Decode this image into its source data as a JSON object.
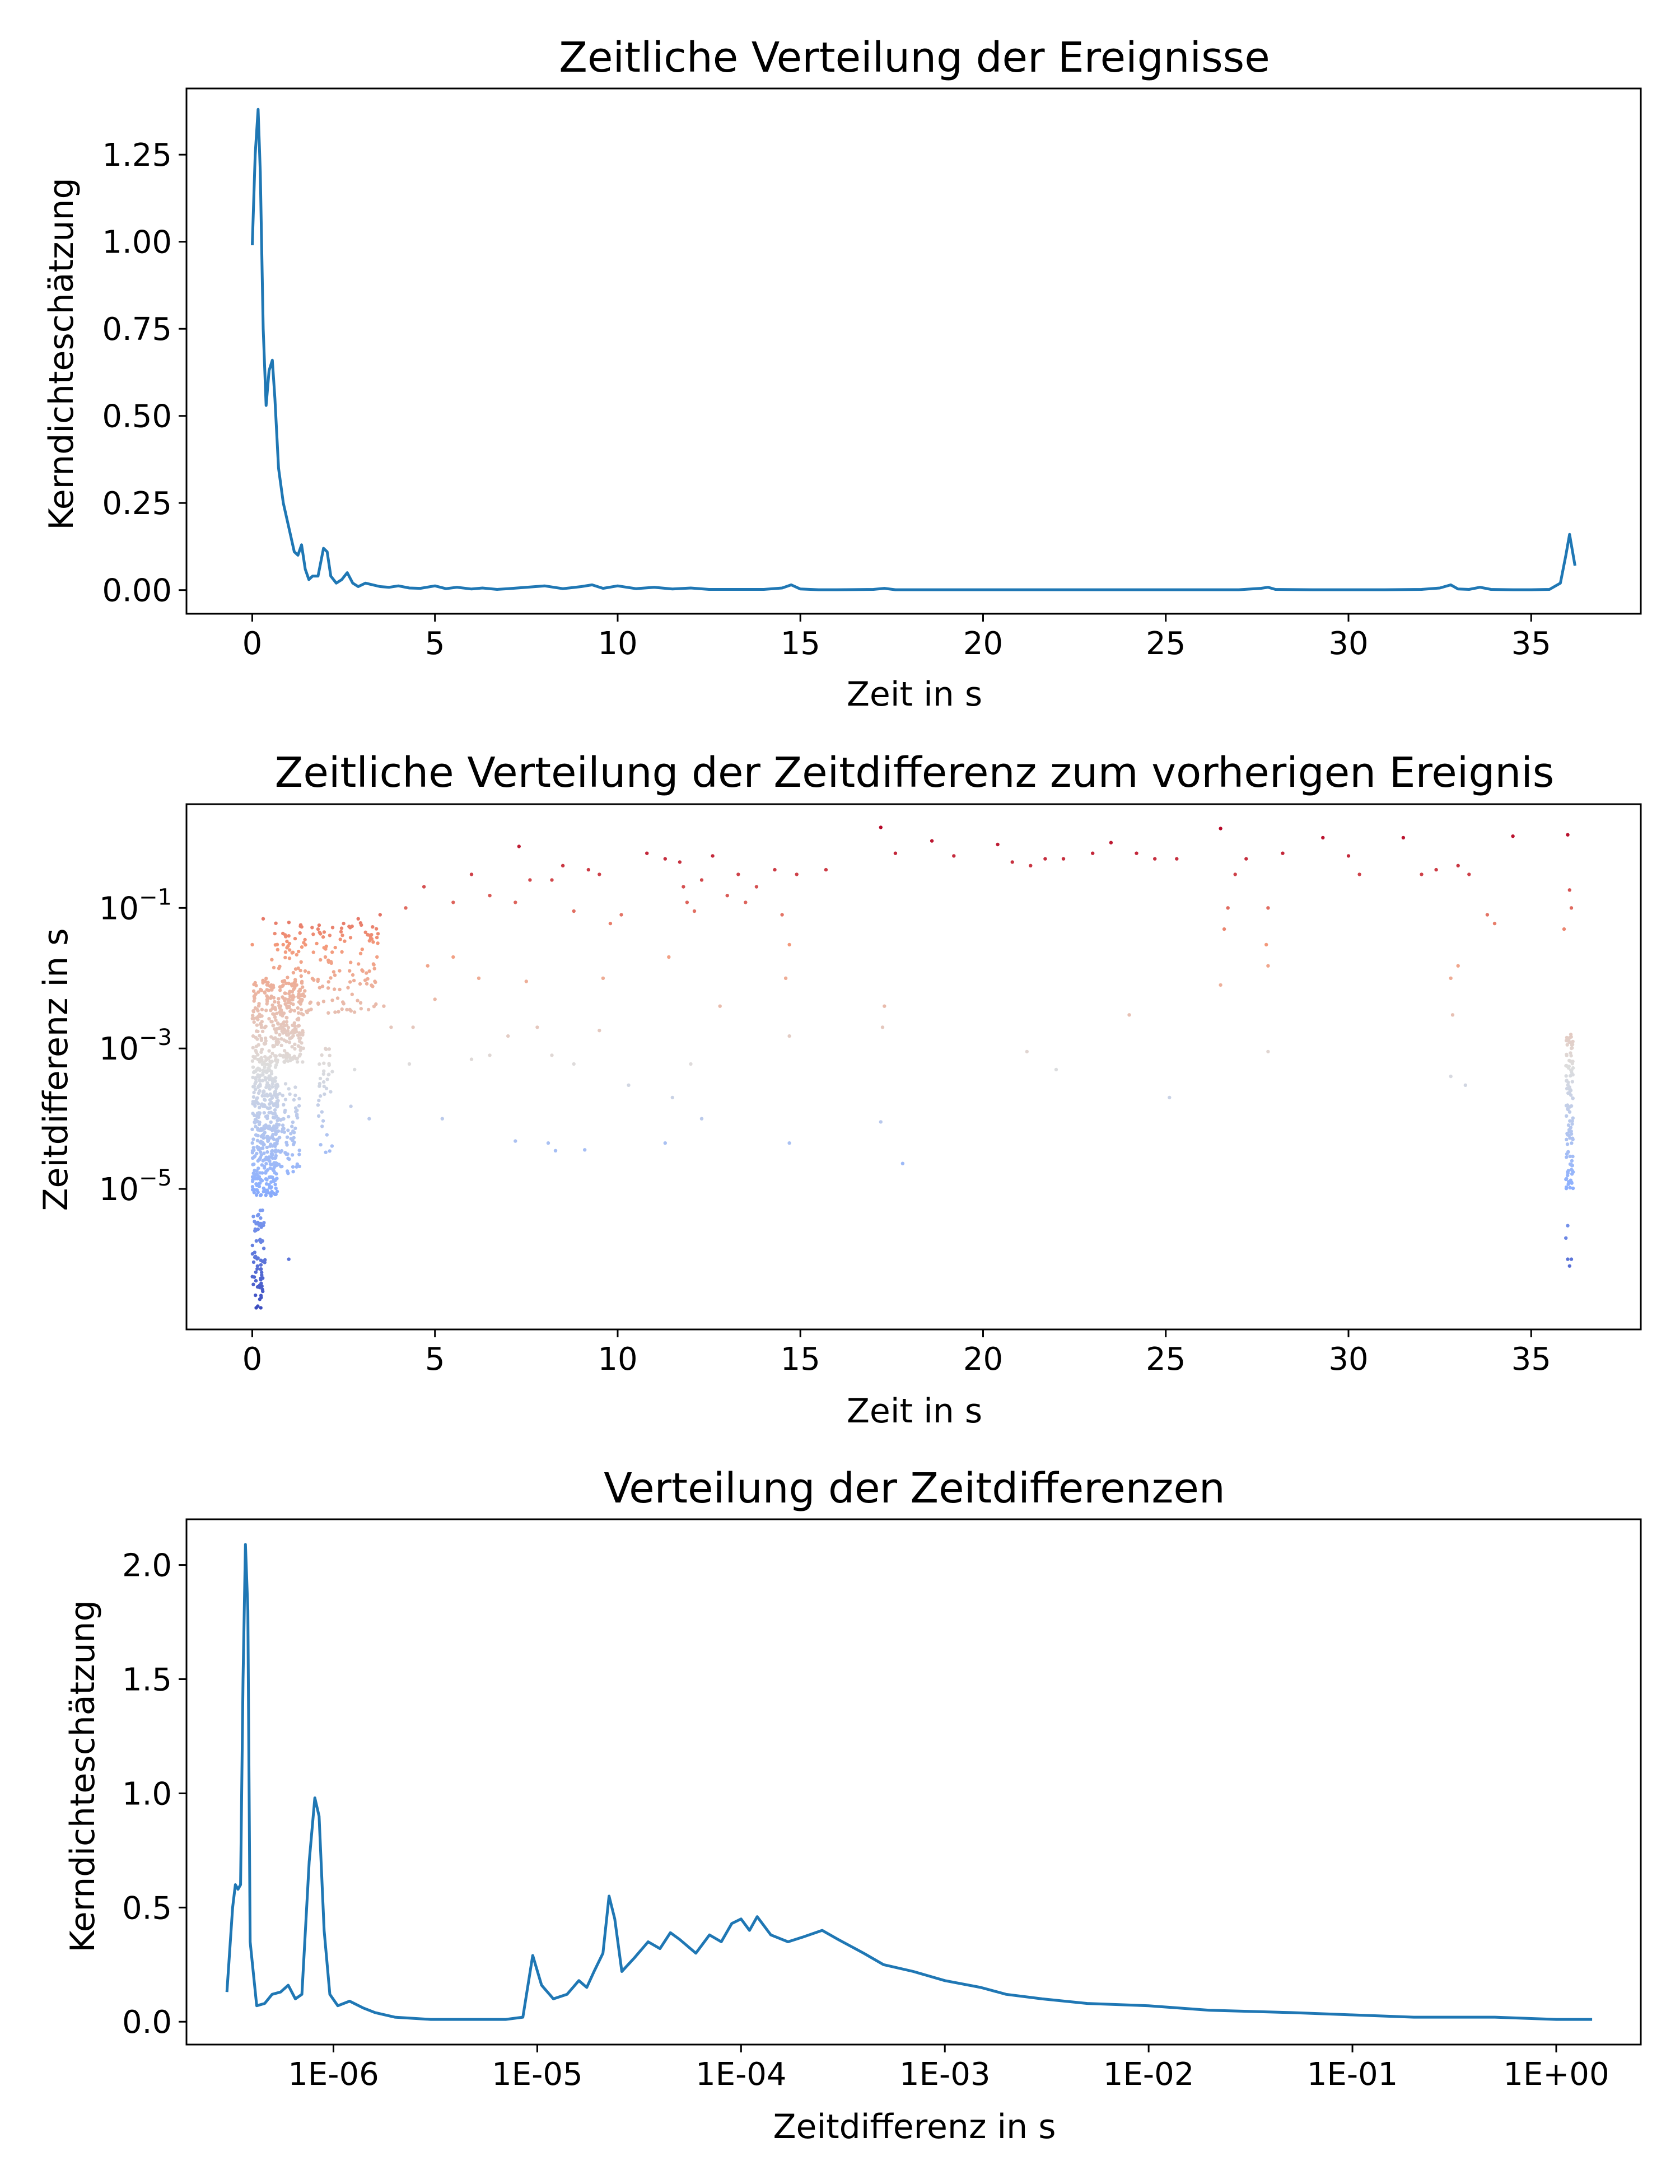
{
  "figure": {
    "background": "#ffffff",
    "line_color": "#1f77b4"
  },
  "chart_data": [
    {
      "type": "line",
      "title": "Zeitliche Verteilung der Ereignisse",
      "xlabel": "Zeit in s",
      "ylabel": "Kerndichteschätzung",
      "xlim": [
        -1.8,
        38.0
      ],
      "ylim": [
        -0.068,
        1.44
      ],
      "xticks": [
        0,
        5,
        10,
        15,
        20,
        25,
        30,
        35
      ],
      "xtick_labels": [
        "0",
        "5",
        "10",
        "15",
        "20",
        "25",
        "30",
        "35"
      ],
      "yticks": [
        0.0,
        0.25,
        0.5,
        0.75,
        1.0,
        1.25
      ],
      "ytick_labels": [
        "0.00",
        "0.25",
        "0.50",
        "0.75",
        "1.00",
        "1.25"
      ],
      "grid": false,
      "series": [
        {
          "color": "#1f77b4",
          "x": [
            0.0,
            0.08,
            0.16,
            0.22,
            0.3,
            0.38,
            0.46,
            0.55,
            0.62,
            0.72,
            0.85,
            1.0,
            1.15,
            1.25,
            1.35,
            1.45,
            1.55,
            1.65,
            1.8,
            1.95,
            2.05,
            2.15,
            2.3,
            2.45,
            2.6,
            2.75,
            2.9,
            3.1,
            3.3,
            3.5,
            3.75,
            4.0,
            4.3,
            4.6,
            5.0,
            5.3,
            5.6,
            6.0,
            6.3,
            6.7,
            7.0,
            7.5,
            8.0,
            8.5,
            9.0,
            9.3,
            9.6,
            10.0,
            10.5,
            11.0,
            11.5,
            12.0,
            12.5,
            13.0,
            14.0,
            14.5,
            14.75,
            15.0,
            15.5,
            16.0,
            17.0,
            17.3,
            17.6,
            18.0,
            19.0,
            20.0,
            21.0,
            22.0,
            23.0,
            24.0,
            25.0,
            26.0,
            27.0,
            27.6,
            27.8,
            28.0,
            29.0,
            30.0,
            31.0,
            32.0,
            32.5,
            32.8,
            33.0,
            33.3,
            33.6,
            33.9,
            34.5,
            35.0,
            35.5,
            35.8,
            35.95,
            36.05,
            36.1,
            36.2
          ],
          "y": [
            0.99,
            1.25,
            1.38,
            1.2,
            0.75,
            0.53,
            0.63,
            0.66,
            0.55,
            0.35,
            0.25,
            0.18,
            0.11,
            0.1,
            0.13,
            0.06,
            0.03,
            0.04,
            0.04,
            0.12,
            0.11,
            0.04,
            0.02,
            0.03,
            0.05,
            0.02,
            0.01,
            0.02,
            0.015,
            0.01,
            0.008,
            0.012,
            0.006,
            0.005,
            0.012,
            0.004,
            0.008,
            0.003,
            0.006,
            0.002,
            0.004,
            0.008,
            0.012,
            0.004,
            0.01,
            0.015,
            0.005,
            0.012,
            0.004,
            0.008,
            0.003,
            0.006,
            0.002,
            0.002,
            0.002,
            0.006,
            0.015,
            0.003,
            0.001,
            0.001,
            0.002,
            0.005,
            0.001,
            0.001,
            0.001,
            0.001,
            0.001,
            0.001,
            0.001,
            0.001,
            0.001,
            0.001,
            0.001,
            0.005,
            0.008,
            0.002,
            0.001,
            0.001,
            0.001,
            0.002,
            0.006,
            0.015,
            0.003,
            0.002,
            0.008,
            0.002,
            0.001,
            0.001,
            0.002,
            0.02,
            0.1,
            0.16,
            0.13,
            0.07
          ]
        }
      ]
    },
    {
      "type": "scatter",
      "title": "Zeitliche Verteilung der Zeitdifferenz zum vorherigen Ereignis",
      "xlabel": "Zeit in s",
      "ylabel": "Zeitdifferenz in s",
      "xlim": [
        -1.8,
        38.0
      ],
      "ylog": true,
      "ylim": [
        1e-07,
        3.0
      ],
      "yticks": [
        1e-05,
        0.001,
        0.1
      ],
      "ytick_labels": [
        {
          "base": "10",
          "exp": "−5"
        },
        {
          "base": "10",
          "exp": "−3"
        },
        {
          "base": "10",
          "exp": "−1"
        }
      ],
      "xticks": [
        0,
        5,
        10,
        15,
        20,
        25,
        30,
        35
      ],
      "xtick_labels": [
        "0",
        "5",
        "10",
        "15",
        "20",
        "25",
        "30",
        "35"
      ],
      "grid": false,
      "colormap": "coolwarm",
      "colormap_stops": [
        "#3b4cc0",
        "#8db0fe",
        "#dddddd",
        "#f49a7b",
        "#b40426"
      ],
      "points": [
        {
          "x": 17.2,
          "y": 1.4
        },
        {
          "x": 36.0,
          "y": 1.1
        },
        {
          "x": 34.5,
          "y": 1.05
        },
        {
          "x": 31.5,
          "y": 1.0
        },
        {
          "x": 29.3,
          "y": 1.0
        },
        {
          "x": 26.5,
          "y": 1.35
        },
        {
          "x": 23.5,
          "y": 0.85
        },
        {
          "x": 20.4,
          "y": 0.8
        },
        {
          "x": 18.6,
          "y": 0.9
        },
        {
          "x": 7.3,
          "y": 0.75
        },
        {
          "x": 17.6,
          "y": 0.6
        },
        {
          "x": 19.2,
          "y": 0.55
        },
        {
          "x": 20.8,
          "y": 0.45
        },
        {
          "x": 21.3,
          "y": 0.4
        },
        {
          "x": 21.7,
          "y": 0.5
        },
        {
          "x": 22.2,
          "y": 0.5
        },
        {
          "x": 23.0,
          "y": 0.6
        },
        {
          "x": 24.2,
          "y": 0.6
        },
        {
          "x": 24.7,
          "y": 0.5
        },
        {
          "x": 25.3,
          "y": 0.5
        },
        {
          "x": 10.8,
          "y": 0.6
        },
        {
          "x": 11.3,
          "y": 0.5
        },
        {
          "x": 11.7,
          "y": 0.45
        },
        {
          "x": 12.6,
          "y": 0.55
        },
        {
          "x": 15.7,
          "y": 0.35
        },
        {
          "x": 28.2,
          "y": 0.6
        },
        {
          "x": 30.0,
          "y": 0.55
        },
        {
          "x": 30.3,
          "y": 0.3
        },
        {
          "x": 32.0,
          "y": 0.3
        },
        {
          "x": 32.4,
          "y": 0.35
        },
        {
          "x": 33.0,
          "y": 0.4
        },
        {
          "x": 33.3,
          "y": 0.3
        },
        {
          "x": 27.2,
          "y": 0.5
        },
        {
          "x": 26.9,
          "y": 0.3
        },
        {
          "x": 6.0,
          "y": 0.3
        },
        {
          "x": 4.7,
          "y": 0.2
        },
        {
          "x": 8.5,
          "y": 0.4
        },
        {
          "x": 9.5,
          "y": 0.3
        },
        {
          "x": 9.2,
          "y": 0.35
        },
        {
          "x": 8.2,
          "y": 0.25
        },
        {
          "x": 7.6,
          "y": 0.25
        },
        {
          "x": 11.8,
          "y": 0.2
        },
        {
          "x": 12.3,
          "y": 0.25
        },
        {
          "x": 13.3,
          "y": 0.3
        },
        {
          "x": 13.8,
          "y": 0.2
        },
        {
          "x": 14.3,
          "y": 0.35
        },
        {
          "x": 14.9,
          "y": 0.3
        },
        {
          "x": 6.5,
          "y": 0.15
        },
        {
          "x": 5.5,
          "y": 0.12
        },
        {
          "x": 3.5,
          "y": 0.08
        },
        {
          "x": 4.2,
          "y": 0.1
        },
        {
          "x": 7.2,
          "y": 0.12
        },
        {
          "x": 8.8,
          "y": 0.09
        },
        {
          "x": 9.8,
          "y": 0.06
        },
        {
          "x": 10.1,
          "y": 0.08
        },
        {
          "x": 11.9,
          "y": 0.12
        },
        {
          "x": 12.1,
          "y": 0.09
        },
        {
          "x": 13.0,
          "y": 0.15
        },
        {
          "x": 13.5,
          "y": 0.12
        },
        {
          "x": 14.5,
          "y": 0.08
        },
        {
          "x": 14.7,
          "y": 0.03
        },
        {
          "x": 14.6,
          "y": 0.01
        },
        {
          "x": 36.05,
          "y": 0.18
        },
        {
          "x": 36.1,
          "y": 0.1
        },
        {
          "x": 35.9,
          "y": 0.05
        },
        {
          "x": 33.8,
          "y": 0.08
        },
        {
          "x": 34.0,
          "y": 0.06
        },
        {
          "x": 26.7,
          "y": 0.1
        },
        {
          "x": 26.6,
          "y": 0.05
        },
        {
          "x": 27.8,
          "y": 0.1
        },
        {
          "x": 27.75,
          "y": 0.03
        },
        {
          "x": 27.8,
          "y": 0.015
        },
        {
          "x": 26.5,
          "y": 0.008
        },
        {
          "x": 32.8,
          "y": 0.01
        },
        {
          "x": 32.85,
          "y": 0.003
        },
        {
          "x": 33.0,
          "y": 0.015
        },
        {
          "x": 0.3,
          "y": 0.07
        },
        {
          "x": 1.0,
          "y": 0.04
        },
        {
          "x": 1.8,
          "y": 0.05
        },
        {
          "x": 2.5,
          "y": 0.06
        },
        {
          "x": 2.9,
          "y": 0.07
        },
        {
          "x": 3.1,
          "y": 0.045
        },
        {
          "x": 0.0,
          "y": 0.03
        },
        {
          "x": 2.0,
          "y": 0.02
        },
        {
          "x": 4.8,
          "y": 0.015
        },
        {
          "x": 5.5,
          "y": 0.02
        },
        {
          "x": 6.2,
          "y": 0.01
        },
        {
          "x": 9.6,
          "y": 0.01
        },
        {
          "x": 11.4,
          "y": 0.02
        },
        {
          "x": 12.8,
          "y": 0.004
        },
        {
          "x": 7.5,
          "y": 0.009
        },
        {
          "x": 3.6,
          "y": 0.004
        },
        {
          "x": 4.4,
          "y": 0.002
        },
        {
          "x": 5.0,
          "y": 0.005
        },
        {
          "x": 3.8,
          "y": 0.002
        },
        {
          "x": 17.3,
          "y": 0.004
        },
        {
          "x": 17.25,
          "y": 0.002
        },
        {
          "x": 24.0,
          "y": 0.003
        },
        {
          "x": 21.2,
          "y": 0.0009
        },
        {
          "x": 7.0,
          "y": 0.0015
        },
        {
          "x": 7.8,
          "y": 0.002
        },
        {
          "x": 9.5,
          "y": 0.0018
        },
        {
          "x": 6.5,
          "y": 0.0008
        },
        {
          "x": 14.7,
          "y": 0.0015
        },
        {
          "x": 12.0,
          "y": 0.0006
        },
        {
          "x": 2.8,
          "y": 0.0005
        },
        {
          "x": 6.0,
          "y": 0.0007
        },
        {
          "x": 8.2,
          "y": 0.0008
        },
        {
          "x": 8.8,
          "y": 0.0006
        },
        {
          "x": 4.3,
          "y": 0.0006
        },
        {
          "x": 25.1,
          "y": 0.0002
        },
        {
          "x": 22.0,
          "y": 0.0005
        },
        {
          "x": 27.8,
          "y": 0.0009
        },
        {
          "x": 33.2,
          "y": 0.0003
        },
        {
          "x": 32.8,
          "y": 0.0004
        },
        {
          "x": 17.2,
          "y": 9e-05
        },
        {
          "x": 17.8,
          "y": 2.3e-05
        },
        {
          "x": 14.7,
          "y": 4.5e-05
        },
        {
          "x": 11.3,
          "y": 4.5e-05
        },
        {
          "x": 9.1,
          "y": 3.6e-05
        },
        {
          "x": 8.1,
          "y": 4.5e-05
        },
        {
          "x": 7.2,
          "y": 4.8e-05
        },
        {
          "x": 8.3,
          "y": 3.5e-05
        },
        {
          "x": 5.2,
          "y": 0.0001
        },
        {
          "x": 3.2,
          "y": 0.0001
        },
        {
          "x": 2.7,
          "y": 0.00015
        },
        {
          "x": 10.3,
          "y": 0.0003
        },
        {
          "x": 11.5,
          "y": 0.0002
        },
        {
          "x": 12.3,
          "y": 0.0001
        },
        {
          "x": 1.0,
          "y": 1e-06
        },
        {
          "x": 36.0,
          "y": 3e-06
        },
        {
          "x": 36.0,
          "y": 1e-06
        },
        {
          "x": 36.05,
          "y": 8e-07
        },
        {
          "x": 35.95,
          "y": 2e-06
        },
        {
          "x": 36.1,
          "y": 1e-06
        }
      ],
      "point_clusters": [
        {
          "x_range": [
            0.0,
            0.35
          ],
          "logy_range": [
            -6.7,
            -5.3
          ],
          "count": 70
        },
        {
          "x_range": [
            0.0,
            0.7
          ],
          "logy_range": [
            -5.1,
            -3.1
          ],
          "count": 380
        },
        {
          "x_range": [
            0.0,
            1.4
          ],
          "logy_range": [
            -3.2,
            -2.0
          ],
          "count": 300
        },
        {
          "x_range": [
            0.5,
            3.5
          ],
          "logy_range": [
            -2.5,
            -1.2
          ],
          "count": 180
        },
        {
          "x_range": [
            0.6,
            1.3
          ],
          "logy_range": [
            -4.8,
            -3.5
          ],
          "count": 90
        },
        {
          "x_range": [
            1.8,
            2.2
          ],
          "logy_range": [
            -4.5,
            -3.0
          ],
          "count": 35
        },
        {
          "x_range": [
            35.95,
            36.15
          ],
          "logy_range": [
            -5.0,
            -2.8
          ],
          "count": 110
        }
      ]
    },
    {
      "type": "line",
      "title": "Verteilung der Zeitdifferenzen",
      "xlabel": "Zeitdifferenz in s",
      "ylabel": "Kerndichteschätzung",
      "xlog": true,
      "xlim": [
        1.9e-07,
        2.6
      ],
      "ylim": [
        -0.1,
        2.2
      ],
      "xticks": [
        1e-06,
        1e-05,
        0.0001,
        0.001,
        0.01,
        0.1,
        1.0
      ],
      "xtick_labels": [
        "1E-06",
        "1E-05",
        "1E-04",
        "1E-03",
        "1E-02",
        "1E-01",
        "1E+00"
      ],
      "yticks": [
        0.0,
        0.5,
        1.0,
        1.5,
        2.0
      ],
      "ytick_labels": [
        "0.0",
        "0.5",
        "1.0",
        "1.5",
        "2.0"
      ],
      "grid": false,
      "series": [
        {
          "color": "#1f77b4",
          "x": [
            3e-07,
            3.2e-07,
            3.3e-07,
            3.4e-07,
            3.5e-07,
            3.6e-07,
            3.7e-07,
            3.8e-07,
            3.9e-07,
            4.2e-07,
            4.6e-07,
            5e-07,
            5.5e-07,
            6e-07,
            6.5e-07,
            7e-07,
            7.6e-07,
            8.1e-07,
            8.5e-07,
            9e-07,
            9.6e-07,
            1.05e-06,
            1.2e-06,
            1.4e-06,
            1.6e-06,
            2e-06,
            3e-06,
            5e-06,
            7e-06,
            8.5e-06,
            9.5e-06,
            1.05e-05,
            1.2e-05,
            1.4e-05,
            1.6e-05,
            1.75e-05,
            1.9e-05,
            2.1e-05,
            2.25e-05,
            2.4e-05,
            2.6e-05,
            3e-05,
            3.5e-05,
            4e-05,
            4.5e-05,
            5e-05,
            6e-05,
            7e-05,
            8e-05,
            9e-05,
            0.0001,
            0.00011,
            0.00012,
            0.00014,
            0.00017,
            0.0002,
            0.00025,
            0.0003,
            0.0004,
            0.0005,
            0.0007,
            0.001,
            0.0015,
            0.002,
            0.003,
            0.005,
            0.01,
            0.02,
            0.05,
            0.1,
            0.2,
            0.5,
            1.0,
            1.5
          ],
          "y": [
            0.13,
            0.5,
            0.6,
            0.58,
            0.6,
            1.5,
            2.09,
            1.8,
            0.35,
            0.07,
            0.08,
            0.12,
            0.13,
            0.16,
            0.1,
            0.12,
            0.7,
            0.98,
            0.9,
            0.4,
            0.12,
            0.07,
            0.09,
            0.06,
            0.04,
            0.02,
            0.01,
            0.01,
            0.01,
            0.02,
            0.29,
            0.16,
            0.1,
            0.12,
            0.18,
            0.15,
            0.22,
            0.3,
            0.55,
            0.45,
            0.22,
            0.28,
            0.35,
            0.32,
            0.39,
            0.36,
            0.3,
            0.38,
            0.35,
            0.43,
            0.45,
            0.4,
            0.46,
            0.38,
            0.35,
            0.37,
            0.4,
            0.36,
            0.3,
            0.25,
            0.22,
            0.18,
            0.15,
            0.12,
            0.1,
            0.08,
            0.07,
            0.05,
            0.04,
            0.03,
            0.02,
            0.02,
            0.01,
            0.01
          ]
        }
      ]
    }
  ]
}
